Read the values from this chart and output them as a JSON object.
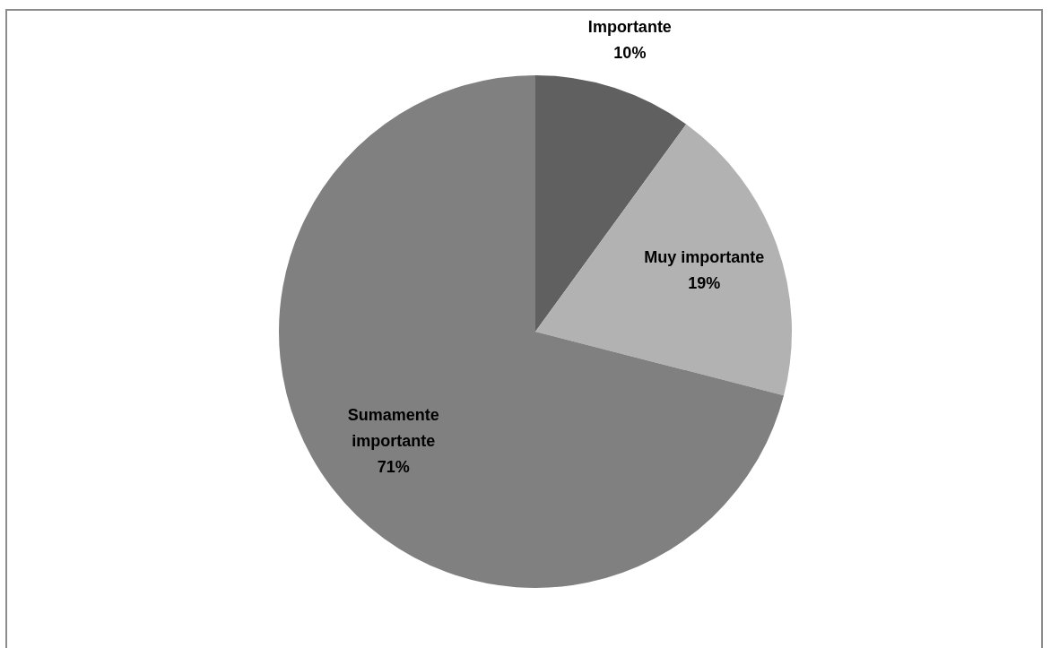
{
  "chart_data": {
    "type": "pie",
    "categories": [
      "Importante",
      "Muy importante",
      "Sumamente importante"
    ],
    "values": [
      10,
      19,
      71
    ],
    "colors": [
      "#606060",
      "#b2b2b2",
      "#808080"
    ],
    "value_labels": [
      "10%",
      "19%",
      "71%"
    ],
    "legend": false
  }
}
